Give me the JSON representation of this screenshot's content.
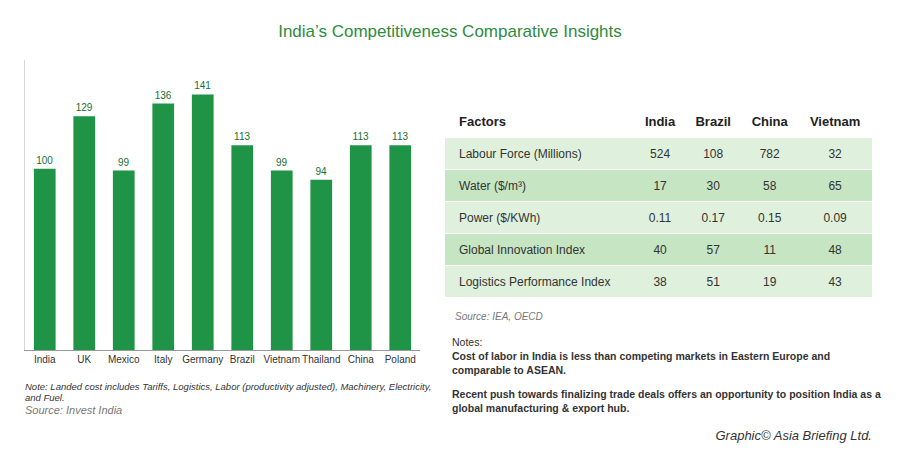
{
  "title": "India’s Competitiveness Comparative Insights",
  "chart_data": {
    "type": "bar",
    "categories": [
      "India",
      "UK",
      "Mexico",
      "Italy",
      "Germany",
      "Brazil",
      "Vietnam",
      "Thailand",
      "China",
      "Poland"
    ],
    "values": [
      100,
      129,
      99,
      136,
      141,
      113,
      99,
      94,
      113,
      113
    ],
    "color": "#1f9447",
    "ylim": [
      0,
      160
    ],
    "grid": false,
    "data_labels": true,
    "tick_labels": "x"
  },
  "chart_note": "Note: Landed cost includes Tariffs, Logistics, Labor (productivity adjusted), Machinery, Electricity, and Fuel.",
  "chart_source": "Source: Invest India",
  "table": {
    "header": [
      "Factors",
      "India",
      "Brazil",
      "China",
      "Vietnam"
    ],
    "rows": [
      [
        "Labour Force (Millions)",
        524,
        108,
        782,
        32
      ],
      [
        "Water ($/m³)",
        17,
        30,
        58,
        65
      ],
      [
        "Power ($/KWh)",
        0.11,
        0.17,
        0.15,
        0.09
      ],
      [
        "Global Innovation Index",
        40,
        57,
        11,
        48
      ],
      [
        "Logistics Performance Index",
        38,
        51,
        19,
        43
      ]
    ],
    "source": "Source: IEA, OECD"
  },
  "notes": {
    "heading": "Notes:",
    "items": [
      "Cost of labor in India is less than competing markets in Eastern Europe and comparable to ASEAN.",
      "Recent push towards finalizing trade deals offers an opportunity to position India as a global manufacturing & export hub."
    ]
  },
  "credit": "Graphic© Asia Briefing Ltd."
}
